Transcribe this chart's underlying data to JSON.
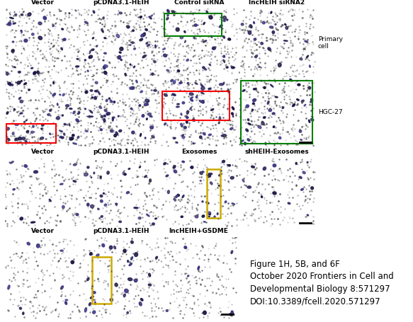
{
  "bg_color": "#ffffff",
  "section1": {
    "row_labels": [
      "Primary\ncell",
      "HGC-27"
    ],
    "col_labels": [
      "Vector",
      "pCDNA3.1-HEIH",
      "Control siRNA",
      "lncHEIH siRNA2"
    ],
    "grid_rows": 2,
    "grid_cols": 4
  },
  "section2": {
    "col_labels": [
      "Vector",
      "pCDNA3.1-HEIH",
      "Exosomes",
      "shHEIH-Exosomes"
    ],
    "grid_rows": 1,
    "grid_cols": 4
  },
  "section3": {
    "col_labels": [
      "Vector",
      "pCDNA3.1-HEIH",
      "lncHEIH+GSDME"
    ],
    "grid_rows": 1,
    "grid_cols": 3
  },
  "caption_lines": [
    "Figure 1H, 5B, and 6F",
    "October 2020 Frontiers in Cell and",
    "Developmental Biology 8:571297",
    "DOI:10.3389/fcell.2020.571297"
  ],
  "header_fontsize": 6.5,
  "label_fontsize": 6.5,
  "caption_fontsize": 8.5,
  "panel_bg": "#e8e4d5",
  "panel_bg_gray": "#d8d5ce",
  "dot_color_dark": "#2a2560",
  "dot_color_mid": "#4a4590",
  "small_dot_color": "#555555",
  "s1_small_dot_density": 300,
  "s1_large_dot_density_row0": [
    30,
    45,
    35,
    22
  ],
  "s1_large_dot_density_row1": [
    55,
    50,
    50,
    38
  ],
  "s2_small_dot_density": 180,
  "s2_large_dot_density": [
    12,
    28,
    38,
    15
  ],
  "s3_small_dot_density": 200,
  "s3_large_dot_density": [
    10,
    30,
    8
  ]
}
